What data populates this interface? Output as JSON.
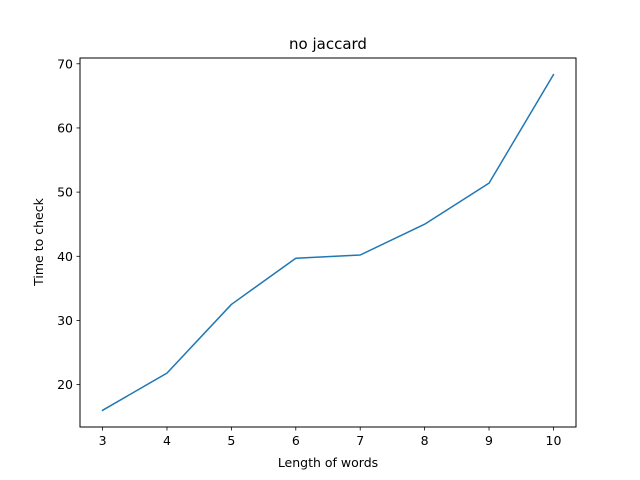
{
  "chart_data": {
    "type": "line",
    "title": "no jaccard",
    "xlabel": "Length of words",
    "ylabel": "Time to check",
    "x": [
      3,
      4,
      5,
      6,
      7,
      8,
      9,
      10
    ],
    "series": [
      {
        "values": [
          16.0,
          21.8,
          32.5,
          39.7,
          40.2,
          45.0,
          51.4,
          68.3
        ],
        "color": "#1f77b4"
      }
    ],
    "xticks": [
      3,
      4,
      5,
      6,
      7,
      8,
      9,
      10
    ],
    "yticks": [
      20,
      30,
      40,
      50,
      60,
      70
    ],
    "xlim": [
      2.65,
      10.35
    ],
    "ylim": [
      13.4,
      70.9
    ],
    "grid": false,
    "legend": false
  }
}
